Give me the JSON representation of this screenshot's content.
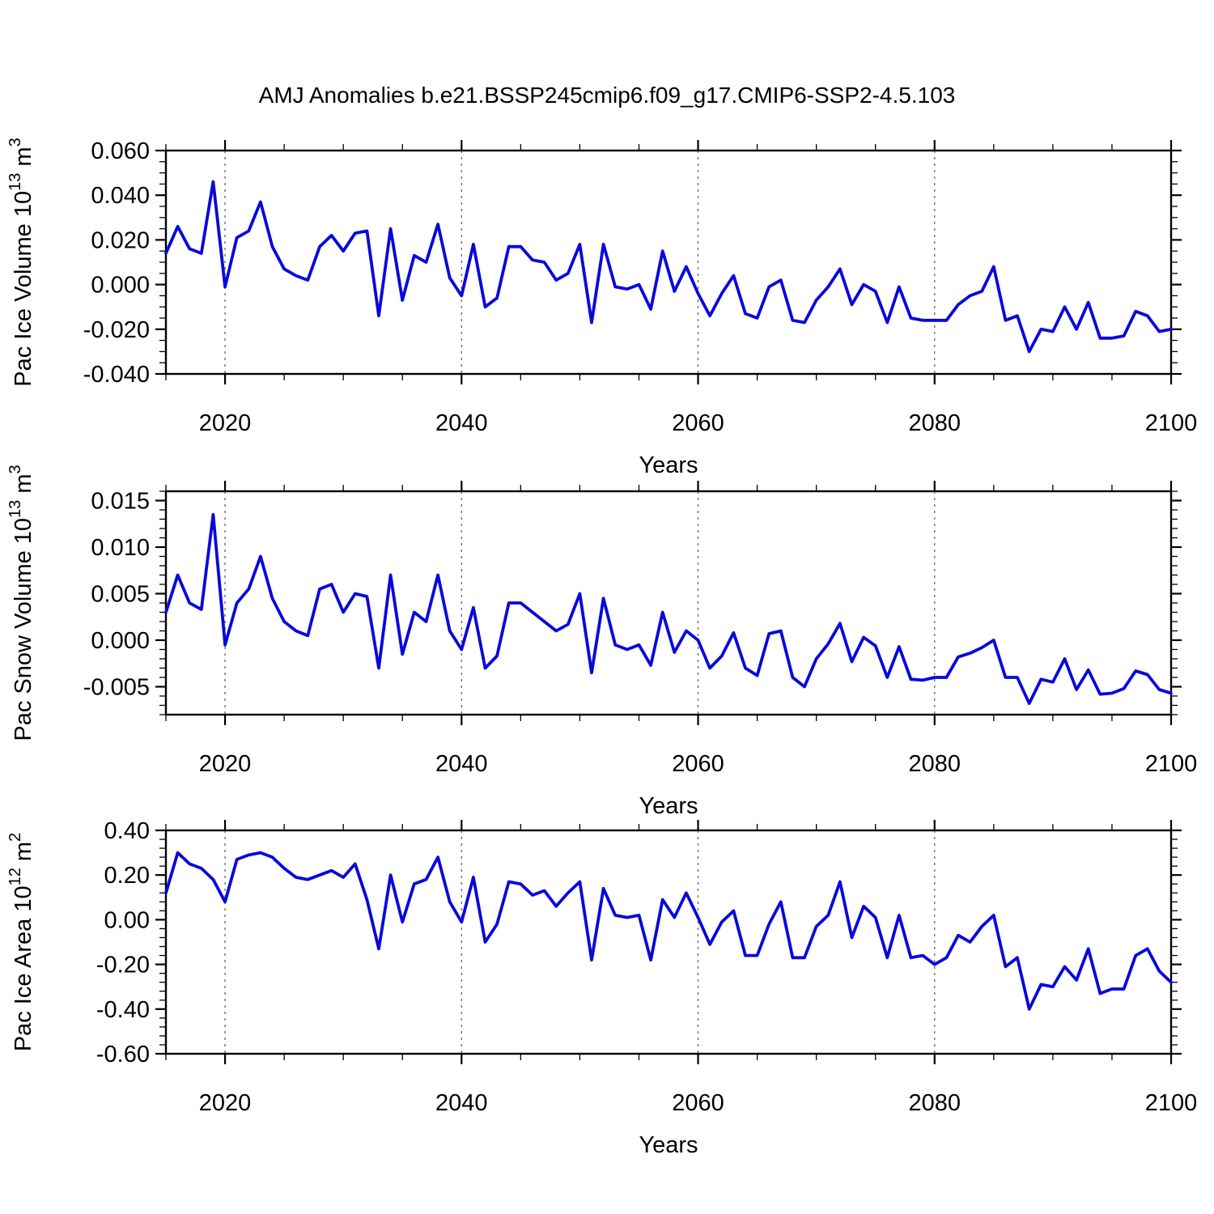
{
  "title": "AMJ Anomalies b.e21.BSSP245cmip6.f09_g17.CMIP6-SSP2-4.5.103",
  "style": {
    "line_color": "#0808dc",
    "axis_color": "#000000",
    "grid_color": "#666666",
    "background": "#ffffff"
  },
  "x_axis": {
    "label": "Years",
    "range": [
      2015,
      2100
    ],
    "year_step": 1,
    "major_ticks": [
      2020,
      2040,
      2060,
      2080,
      2100
    ],
    "major_tick_labels": [
      "2020",
      "2040",
      "2060",
      "2080",
      "2100"
    ],
    "minor_tick_step": 5,
    "dashed_gridlines": [
      2020,
      2040,
      2060,
      2080
    ]
  },
  "chart_data": [
    {
      "type": "line",
      "series_name": "Pac Ice Volume",
      "ylabel": "Pac Ice Volume 10^13 m^3",
      "ylabel_parts": [
        [
          "Pac Ice Volume 10",
          false
        ],
        [
          "13",
          true
        ],
        [
          " m",
          false
        ],
        [
          "3",
          true
        ]
      ],
      "ylim": [
        -0.04,
        0.06
      ],
      "yticks": [
        {
          "v": 0.06,
          "label": "0.060"
        },
        {
          "v": 0.04,
          "label": "0.040"
        },
        {
          "v": 0.02,
          "label": "0.020"
        },
        {
          "v": 0.0,
          "label": "0.000"
        },
        {
          "v": -0.02,
          "label": "-0.020"
        },
        {
          "v": -0.04,
          "label": "-0.040"
        }
      ],
      "y_minor_step": 0.005,
      "x_start_year": 2015,
      "values": [
        0.014,
        0.026,
        0.016,
        0.014,
        0.046,
        -0.001,
        0.021,
        0.024,
        0.037,
        0.017,
        0.007,
        0.004,
        0.002,
        0.017,
        0.022,
        0.015,
        0.023,
        0.024,
        -0.014,
        0.025,
        -0.007,
        0.013,
        0.01,
        0.027,
        0.003,
        -0.005,
        0.018,
        -0.01,
        -0.006,
        0.017,
        0.017,
        0.011,
        0.01,
        0.002,
        0.005,
        0.018,
        -0.017,
        0.018,
        -0.001,
        -0.002,
        0.0,
        -0.011,
        0.015,
        -0.003,
        0.008,
        -0.004,
        -0.014,
        -0.004,
        0.004,
        -0.013,
        -0.015,
        -0.001,
        0.002,
        -0.016,
        -0.017,
        -0.007,
        -0.001,
        0.007,
        -0.009,
        0.0,
        -0.003,
        -0.017,
        -0.001,
        -0.015,
        -0.016,
        -0.016,
        -0.016,
        -0.009,
        -0.005,
        -0.003,
        0.008,
        -0.016,
        -0.014,
        -0.03,
        -0.02,
        -0.021,
        -0.01,
        -0.02,
        -0.008,
        -0.024,
        -0.024,
        -0.023,
        -0.012,
        -0.014,
        -0.021,
        -0.02
      ]
    },
    {
      "type": "line",
      "series_name": "Pac Snow Volume",
      "ylabel": "Pac Snow Volume 10^13 m^3",
      "ylabel_parts": [
        [
          "Pac Snow Volume 10",
          false
        ],
        [
          "13",
          true
        ],
        [
          " m",
          false
        ],
        [
          "3",
          true
        ]
      ],
      "ylim": [
        -0.008,
        0.016
      ],
      "yticks": [
        {
          "v": 0.015,
          "label": "0.015"
        },
        {
          "v": 0.01,
          "label": "0.010"
        },
        {
          "v": 0.005,
          "label": "0.005"
        },
        {
          "v": 0.0,
          "label": "0.000"
        },
        {
          "v": -0.005,
          "label": "-0.005"
        }
      ],
      "y_minor_step": 0.001,
      "x_start_year": 2015,
      "values": [
        0.003,
        0.007,
        0.004,
        0.0033,
        0.0135,
        -0.0005,
        0.004,
        0.0055,
        0.009,
        0.0045,
        0.002,
        0.001,
        0.0005,
        0.0055,
        0.006,
        0.003,
        0.005,
        0.0047,
        -0.003,
        0.007,
        -0.0015,
        0.003,
        0.002,
        0.007,
        0.001,
        -0.001,
        0.0035,
        -0.003,
        -0.0017,
        0.004,
        0.004,
        0.003,
        0.002,
        0.001,
        0.0017,
        0.005,
        -0.0035,
        0.0045,
        -0.0005,
        -0.001,
        -0.0005,
        -0.0027,
        0.003,
        -0.0013,
        0.001,
        0.0,
        -0.003,
        -0.0017,
        0.0008,
        -0.003,
        -0.0038,
        0.0007,
        0.001,
        -0.004,
        -0.005,
        -0.002,
        -0.0004,
        0.0018,
        -0.0023,
        0.0003,
        -0.0006,
        -0.004,
        -0.0007,
        -0.0042,
        -0.0043,
        -0.004,
        -0.004,
        -0.0018,
        -0.0014,
        -0.0008,
        0.0,
        -0.004,
        -0.004,
        -0.0068,
        -0.0042,
        -0.0045,
        -0.002,
        -0.0053,
        -0.0032,
        -0.0058,
        -0.0057,
        -0.0052,
        -0.0033,
        -0.0037,
        -0.0053,
        -0.0057
      ]
    },
    {
      "type": "line",
      "series_name": "Pac Ice Area",
      "ylabel": "Pac Ice Area 10^12 m^2",
      "ylabel_parts": [
        [
          "Pac Ice Area 10",
          false
        ],
        [
          "12",
          true
        ],
        [
          " m",
          false
        ],
        [
          "2",
          true
        ]
      ],
      "ylim": [
        -0.6,
        0.4
      ],
      "yticks": [
        {
          "v": 0.4,
          "label": "0.40"
        },
        {
          "v": 0.2,
          "label": "0.20"
        },
        {
          "v": 0.0,
          "label": "0.00"
        },
        {
          "v": -0.2,
          "label": "-0.20"
        },
        {
          "v": -0.4,
          "label": "-0.40"
        },
        {
          "v": -0.6,
          "label": "-0.60"
        }
      ],
      "y_minor_step": 0.04,
      "x_start_year": 2015,
      "values": [
        0.12,
        0.3,
        0.25,
        0.23,
        0.18,
        0.08,
        0.27,
        0.29,
        0.3,
        0.28,
        0.23,
        0.19,
        0.18,
        0.2,
        0.22,
        0.19,
        0.25,
        0.09,
        -0.13,
        0.2,
        -0.01,
        0.16,
        0.18,
        0.28,
        0.08,
        -0.01,
        0.19,
        -0.1,
        -0.02,
        0.17,
        0.16,
        0.11,
        0.13,
        0.06,
        0.12,
        0.17,
        -0.18,
        0.14,
        0.02,
        0.01,
        0.02,
        -0.18,
        0.09,
        0.01,
        0.12,
        0.01,
        -0.11,
        -0.01,
        0.04,
        -0.16,
        -0.16,
        -0.02,
        0.08,
        -0.17,
        -0.17,
        -0.03,
        0.02,
        0.17,
        -0.08,
        0.06,
        0.01,
        -0.17,
        0.02,
        -0.17,
        -0.16,
        -0.2,
        -0.17,
        -0.07,
        -0.1,
        -0.03,
        0.02,
        -0.21,
        -0.17,
        -0.4,
        -0.29,
        -0.3,
        -0.21,
        -0.27,
        -0.13,
        -0.33,
        -0.31,
        -0.31,
        -0.16,
        -0.13,
        -0.23,
        -0.28
      ]
    }
  ],
  "layout_note": "three stacked line-plot panels, shared x axis 2015-2100, dashed vertical gridlines every 20 years"
}
